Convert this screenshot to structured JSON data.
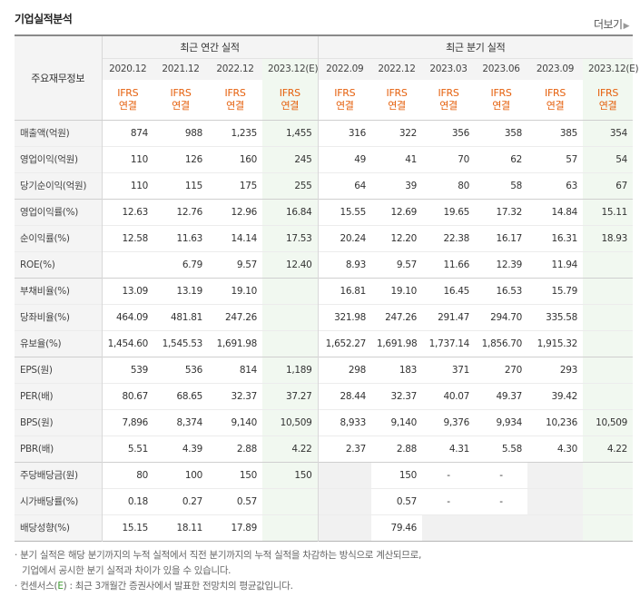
{
  "section_title": "기업실적분석",
  "more_label": "더보기",
  "header": {
    "label_col": "주요재무정보",
    "annual_group": "최근 연간 실적",
    "quarter_group": "최근 분기 실적",
    "annual_periods": [
      "2020.12",
      "2021.12",
      "2022.12",
      "2023.12(E)"
    ],
    "quarter_periods": [
      "2022.09",
      "2022.12",
      "2023.03",
      "2023.06",
      "2023.09",
      "2023.12(E)"
    ],
    "basis_line1": "IFRS",
    "basis_line2": "연결"
  },
  "rows": [
    {
      "label": "매출액(억원)",
      "values": [
        "874",
        "988",
        "1,235",
        "1,455",
        "316",
        "322",
        "356",
        "358",
        "385",
        "354"
      ]
    },
    {
      "label": "영업이익(억원)",
      "values": [
        "110",
        "126",
        "160",
        "245",
        "49",
        "41",
        "70",
        "62",
        "57",
        "54"
      ]
    },
    {
      "label": "당기순이익(억원)",
      "values": [
        "110",
        "115",
        "175",
        "255",
        "64",
        "39",
        "80",
        "58",
        "63",
        "67"
      ]
    },
    {
      "label": "영업이익률(%)",
      "values": [
        "12.63",
        "12.76",
        "12.96",
        "16.84",
        "15.55",
        "12.69",
        "19.65",
        "17.32",
        "14.84",
        "15.11"
      ]
    },
    {
      "label": "순이익률(%)",
      "values": [
        "12.58",
        "11.63",
        "14.14",
        "17.53",
        "20.24",
        "12.20",
        "22.38",
        "16.17",
        "16.31",
        "18.93"
      ]
    },
    {
      "label": "ROE(%)",
      "values": [
        "",
        "6.79",
        "9.57",
        "12.40",
        "8.93",
        "9.57",
        "11.66",
        "12.39",
        "11.94",
        ""
      ]
    },
    {
      "label": "부채비율(%)",
      "values": [
        "13.09",
        "13.19",
        "19.10",
        "",
        "16.81",
        "19.10",
        "16.45",
        "16.53",
        "15.79",
        ""
      ]
    },
    {
      "label": "당좌비율(%)",
      "values": [
        "464.09",
        "481.81",
        "247.26",
        "",
        "321.98",
        "247.26",
        "291.47",
        "294.70",
        "335.58",
        ""
      ]
    },
    {
      "label": "유보율(%)",
      "values": [
        "1,454.60",
        "1,545.53",
        "1,691.98",
        "",
        "1,652.27",
        "1,691.98",
        "1,737.14",
        "1,856.70",
        "1,915.32",
        ""
      ]
    },
    {
      "label": "EPS(원)",
      "values": [
        "539",
        "536",
        "814",
        "1,189",
        "298",
        "183",
        "371",
        "270",
        "293",
        ""
      ]
    },
    {
      "label": "PER(배)",
      "values": [
        "80.67",
        "68.65",
        "32.37",
        "37.27",
        "28.44",
        "32.37",
        "40.07",
        "49.37",
        "39.42",
        ""
      ]
    },
    {
      "label": "BPS(원)",
      "values": [
        "7,896",
        "8,374",
        "9,140",
        "10,509",
        "8,933",
        "9,140",
        "9,376",
        "9,934",
        "10,236",
        "10,509"
      ]
    },
    {
      "label": "PBR(배)",
      "values": [
        "5.51",
        "4.39",
        "2.88",
        "4.22",
        "2.37",
        "2.88",
        "4.31",
        "5.58",
        "4.30",
        "4.22"
      ]
    },
    {
      "label": "주당배당금(원)",
      "values": [
        "80",
        "100",
        "150",
        "150",
        "",
        "150",
        "-",
        "-",
        "",
        ""
      ]
    },
    {
      "label": "시가배당률(%)",
      "values": [
        "0.18",
        "0.27",
        "0.57",
        "",
        "",
        "0.57",
        "-",
        "-",
        "",
        ""
      ]
    },
    {
      "label": "배당성향(%)",
      "values": [
        "15.15",
        "18.11",
        "17.89",
        "",
        "",
        "79.46",
        "",
        "",
        "",
        ""
      ]
    }
  ],
  "notes": {
    "line1": "· 분기 실적은 해당 분기까지의 누적 실적에서 직전 분기까지의 누적 실적을 차감하는 방식으로 계산되므로,",
    "line2": "기업에서 공시한 분기 실적과 차이가 있을 수 있습니다.",
    "line3_prefix": "· 컨센서스(",
    "line3_e": "E",
    "line3_suffix": ") : 최근 3개월간 증권사에서 발표한 전망치의 평균값입니다."
  }
}
